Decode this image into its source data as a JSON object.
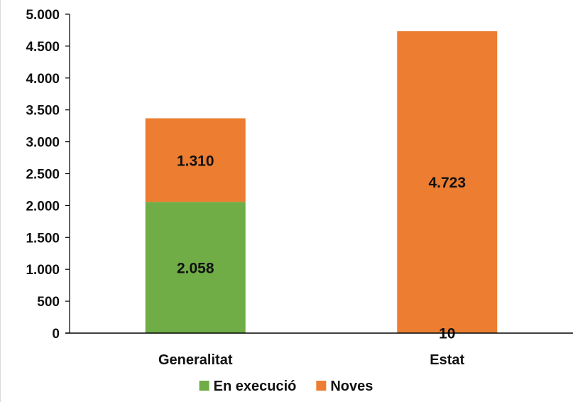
{
  "chart_data": {
    "type": "bar",
    "stacked": true,
    "categories": [
      "Generalitat",
      "Estat"
    ],
    "series": [
      {
        "name": "En execució",
        "values": [
          2058,
          10
        ],
        "labels": [
          "2.058",
          "10"
        ],
        "color": "#70AD47"
      },
      {
        "name": "Noves",
        "values": [
          1310,
          4723
        ],
        "labels": [
          "1.310",
          "4.723"
        ],
        "color": "#ED7D31"
      }
    ],
    "ylim": [
      0,
      5000
    ],
    "yticks": [
      0,
      500,
      1000,
      1500,
      2000,
      2500,
      3000,
      3500,
      4000,
      4500,
      5000
    ],
    "ytick_labels": [
      "0",
      "500",
      "1.000",
      "1.500",
      "2.000",
      "2.500",
      "3.000",
      "3.500",
      "4.000",
      "4.500",
      "5.000"
    ],
    "grid": false,
    "legend_position": "bottom",
    "axis_color": "#000000"
  }
}
